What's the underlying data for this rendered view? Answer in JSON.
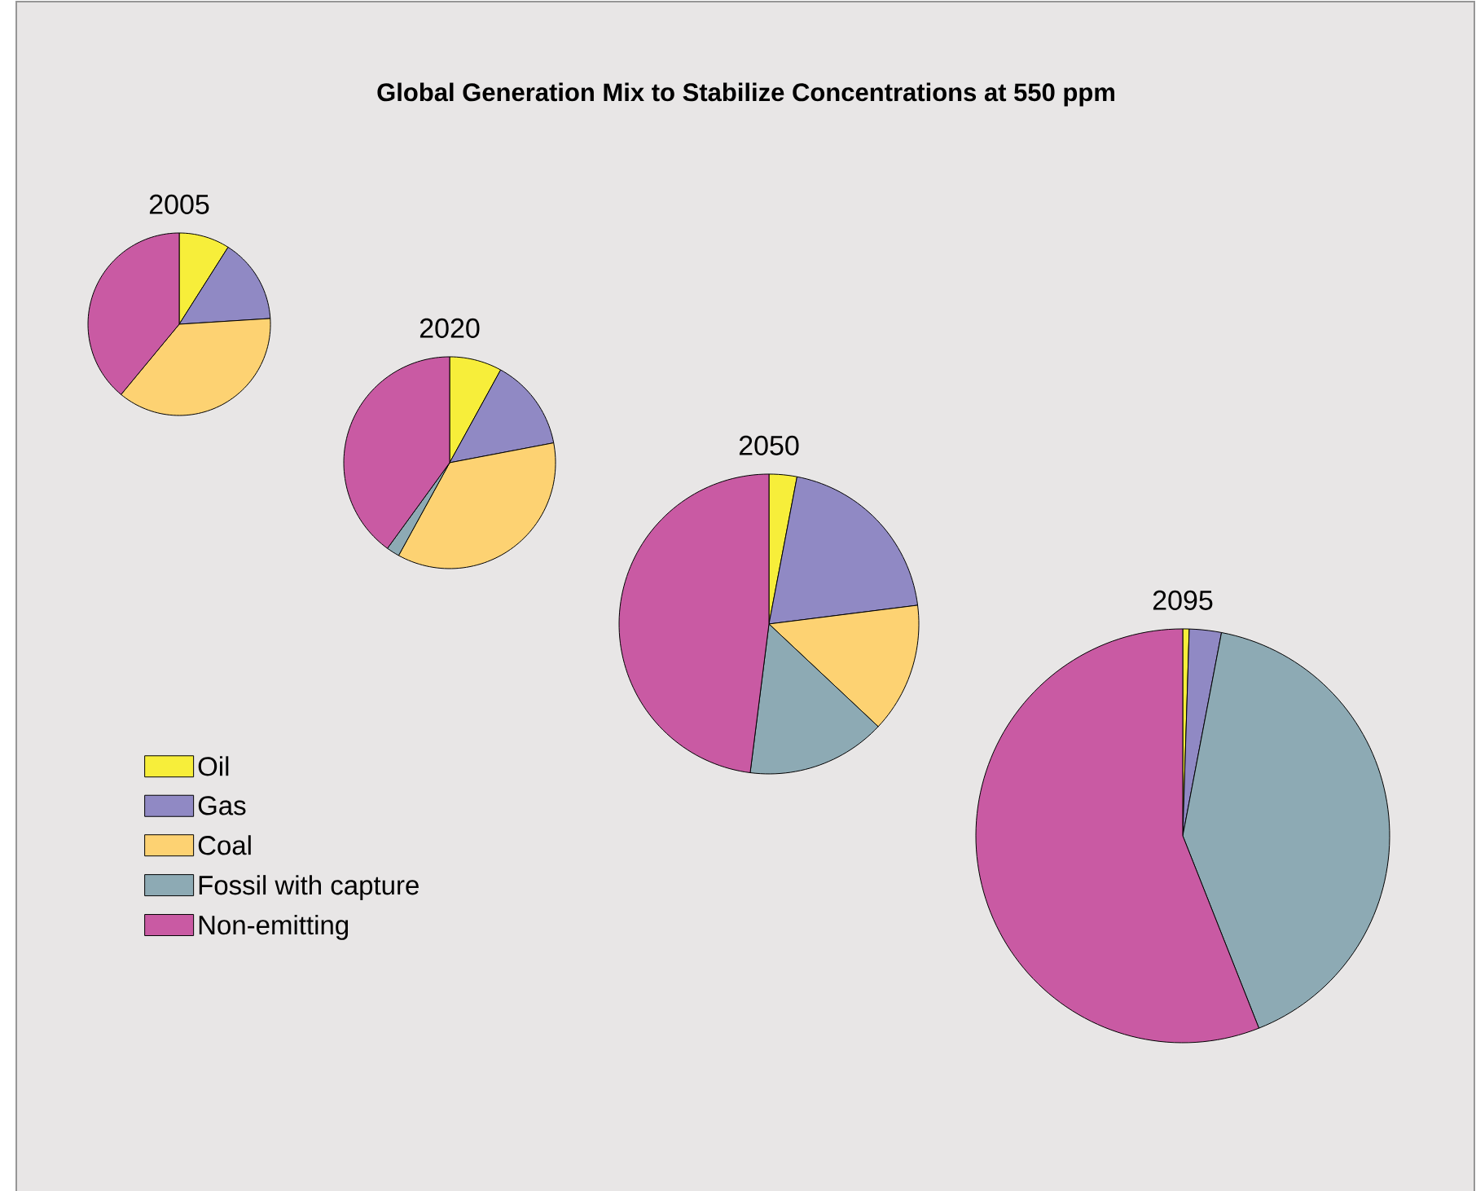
{
  "chart_data": [
    {
      "type": "other",
      "title": "Global Generation Mix to Stabilize Concentrations at 550 ppm"
    },
    {
      "type": "pie",
      "title": "2005",
      "categories": [
        "Oil",
        "Gas",
        "Coal",
        "Fossil with capture",
        "Non-emitting"
      ],
      "values": [
        9,
        15,
        37,
        0,
        39
      ],
      "colors": [
        "#f7ee3a",
        "#9089c4",
        "#fdd272",
        "#8daab4",
        "#c95aa3"
      ],
      "legend": "bottom"
    },
    {
      "type": "pie",
      "title": "2020",
      "values": [
        8,
        14,
        36,
        2,
        40
      ],
      "colors": [
        "#f7ee3a",
        "#9089c4",
        "#fdd272",
        "#8daab4",
        "#c95aa3"
      ]
    },
    {
      "type": "pie",
      "title": "2050",
      "values": [
        3,
        20,
        14,
        15,
        48
      ],
      "colors": [
        "#f7ee3a",
        "#9089c4",
        "#fdd272",
        "#8daab4",
        "#c95aa3"
      ]
    },
    {
      "type": "pie",
      "title": "2095",
      "values": [
        0.5,
        2.5,
        0,
        41,
        56
      ],
      "colors": [
        "#f7ee3a",
        "#9089c4",
        "#fdd272",
        "#8daab4",
        "#c95aa3"
      ]
    }
  ]
}
